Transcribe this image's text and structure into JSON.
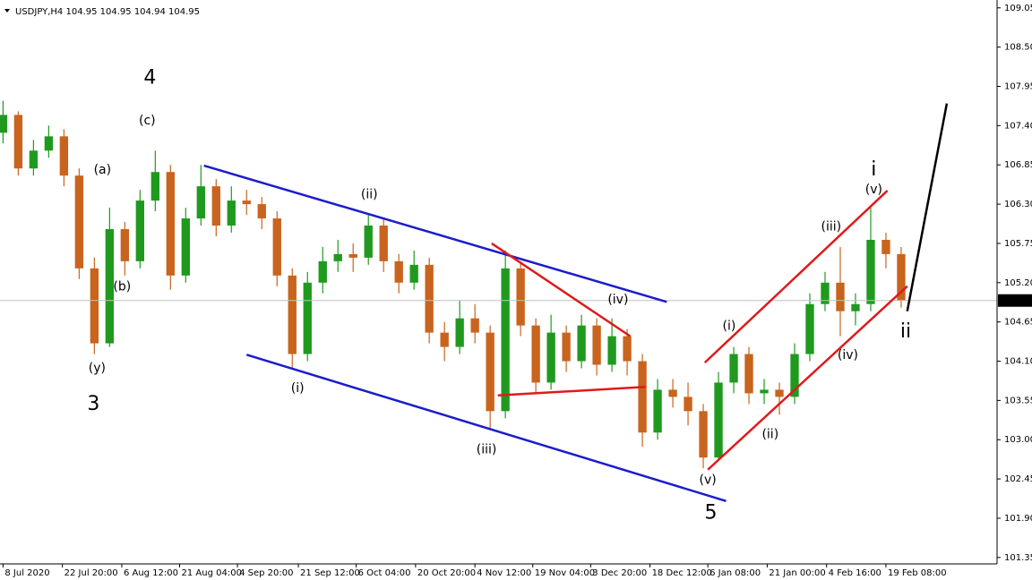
{
  "chart_data": {
    "type": "candlestick",
    "title": "USDJPY,H4  104.95 104.95 104.94 104.95",
    "open": [
      107.3,
      107.55,
      106.8,
      107.05,
      107.25,
      106.7,
      105.4,
      104.35,
      105.95,
      105.5,
      106.35,
      106.75,
      105.3,
      106.1,
      106.55,
      106.0,
      106.35,
      106.3,
      106.1,
      105.3,
      104.2,
      105.2,
      105.5,
      105.6,
      105.55,
      106.0,
      105.5,
      105.2,
      105.45,
      104.5,
      104.3,
      104.7,
      104.5,
      103.4,
      105.4,
      104.6,
      103.8,
      104.5,
      104.1,
      104.6,
      104.05,
      104.45,
      104.1,
      103.1,
      103.7,
      103.6,
      103.4,
      102.75,
      103.8,
      104.2,
      103.65,
      103.7,
      103.6,
      104.2,
      104.9,
      105.2,
      104.8,
      104.9,
      105.8,
      105.6
    ],
    "high": [
      107.75,
      107.6,
      107.2,
      107.4,
      107.35,
      106.8,
      105.55,
      106.25,
      106.05,
      106.5,
      107.05,
      106.85,
      106.25,
      106.85,
      106.65,
      106.55,
      106.5,
      106.4,
      106.2,
      105.4,
      105.35,
      105.7,
      105.8,
      105.75,
      106.15,
      106.1,
      105.6,
      105.65,
      105.55,
      104.65,
      104.95,
      104.9,
      104.6,
      105.65,
      105.5,
      104.7,
      104.75,
      104.6,
      104.75,
      104.7,
      104.7,
      104.55,
      104.2,
      103.85,
      103.85,
      103.8,
      103.5,
      103.95,
      104.3,
      104.3,
      103.85,
      103.8,
      104.35,
      105.05,
      105.35,
      105.7,
      105.05,
      106.25,
      105.9,
      105.7
    ],
    "low": [
      107.15,
      106.7,
      106.7,
      106.95,
      106.55,
      105.25,
      104.2,
      104.3,
      105.3,
      105.4,
      106.2,
      105.1,
      105.2,
      106.0,
      105.85,
      105.9,
      106.15,
      105.95,
      105.15,
      104.0,
      104.1,
      105.05,
      105.35,
      105.35,
      105.45,
      105.35,
      105.05,
      105.1,
      104.35,
      104.1,
      104.2,
      104.35,
      103.15,
      103.3,
      104.45,
      103.65,
      103.7,
      103.95,
      104.0,
      103.9,
      103.95,
      103.9,
      102.9,
      103.0,
      103.45,
      103.2,
      102.6,
      102.7,
      103.65,
      103.5,
      103.5,
      103.35,
      103.5,
      104.1,
      104.8,
      104.45,
      104.6,
      104.8,
      105.4,
      104.85
    ],
    "close": [
      107.55,
      106.8,
      107.05,
      107.25,
      106.7,
      105.4,
      104.35,
      105.95,
      105.5,
      106.35,
      106.75,
      105.3,
      106.1,
      106.55,
      106.0,
      106.35,
      106.3,
      106.1,
      105.3,
      104.2,
      105.2,
      105.5,
      105.6,
      105.55,
      106.0,
      105.5,
      105.2,
      105.45,
      104.5,
      104.3,
      104.7,
      104.5,
      103.4,
      105.4,
      104.6,
      103.8,
      104.5,
      104.1,
      104.6,
      104.05,
      104.45,
      104.1,
      103.1,
      103.7,
      103.6,
      103.4,
      102.75,
      103.8,
      104.2,
      103.65,
      103.7,
      103.6,
      104.2,
      104.9,
      105.2,
      104.8,
      104.9,
      105.8,
      105.6,
      104.95
    ],
    "up_color": "#1f9a1f",
    "down_color": "#c8641e",
    "xlim": [
      -0.2,
      65.3
    ],
    "xticks": [
      {
        "value": 0,
        "label": "8 Jul 2020"
      },
      {
        "value": 3.9,
        "label": "22 Jul 20:00"
      },
      {
        "value": 7.8,
        "label": "6 Aug 12:00"
      },
      {
        "value": 11.6,
        "label": "21 Aug 04:00"
      },
      {
        "value": 15.4,
        "label": "4 Sep 20:00"
      },
      {
        "value": 19.4,
        "label": "21 Sep 12:00"
      },
      {
        "value": 23.2,
        "label": "6 Oct 04:00"
      },
      {
        "value": 27.1,
        "label": "20 Oct 20:00"
      },
      {
        "value": 31,
        "label": "4 Nov 12:00"
      },
      {
        "value": 34.8,
        "label": "19 Nov 04:00"
      },
      {
        "value": 38.6,
        "label": "3 Dec 20:00"
      },
      {
        "value": 42.5,
        "label": "18 Dec 12:00"
      },
      {
        "value": 46.3,
        "label": "6 Jan 08:00"
      },
      {
        "value": 50.2,
        "label": "21 Jan 00:00"
      },
      {
        "value": 54.1,
        "label": "4 Feb 16:00"
      },
      {
        "value": 58,
        "label": "19 Feb 08:00"
      }
    ],
    "ylim": [
      101.26,
      109.16
    ],
    "yticks": [
      {
        "value": 101.35,
        "label": "101.35"
      },
      {
        "value": 101.9,
        "label": "101.90"
      },
      {
        "value": 102.45,
        "label": "102.45"
      },
      {
        "value": 103,
        "label": "103.00"
      },
      {
        "value": 103.55,
        "label": "103.55"
      },
      {
        "value": 104.1,
        "label": "104.10"
      },
      {
        "value": 104.65,
        "label": "104.65"
      },
      {
        "value": 105.2,
        "label": "105.20"
      },
      {
        "value": 105.75,
        "label": "105.75"
      },
      {
        "value": 106.3,
        "label": "106.30"
      },
      {
        "value": 106.85,
        "label": "106.85"
      },
      {
        "value": 107.4,
        "label": "107.40"
      },
      {
        "value": 107.95,
        "label": "107.95"
      },
      {
        "value": 108.5,
        "label": "108.50"
      },
      {
        "value": 109.05,
        "label": "109.05"
      }
    ],
    "annotations": [
      {
        "text": "4",
        "x": 9.65,
        "y": 108.06,
        "color": "#1e6e1e"
      },
      {
        "text": "3",
        "x": 5.94,
        "y": 103.49,
        "color": "#1e6e1e"
      },
      {
        "text": "(c)",
        "x": 9.47,
        "y": 107.47,
        "color": "#e03030"
      },
      {
        "text": "(a)",
        "x": 6.53,
        "y": 106.78,
        "color": "#e03030"
      },
      {
        "text": "(b)",
        "x": 7.82,
        "y": 105.14,
        "color": "#e03030"
      },
      {
        "text": "(y)",
        "x": 6.18,
        "y": 104.0,
        "color": "#e03030"
      },
      {
        "text": "(ii)",
        "x": 24.06,
        "y": 106.43,
        "color": "#e03030"
      },
      {
        "text": "(i)",
        "x": 19.35,
        "y": 103.72,
        "color": "#e03030"
      },
      {
        "text": "(iii)",
        "x": 31.76,
        "y": 102.86,
        "color": "#e03030"
      },
      {
        "text": "(iv)",
        "x": 40.4,
        "y": 104.96,
        "color": "#e03030"
      },
      {
        "text": "(v)",
        "x": 46.3,
        "y": 102.43,
        "color": "#e03030"
      },
      {
        "text": "5",
        "x": 46.5,
        "y": 101.97,
        "color": "#1e6e1e"
      },
      {
        "text": "(i)",
        "x": 47.7,
        "y": 104.59,
        "color": "#e03030"
      },
      {
        "text": "(ii)",
        "x": 50.4,
        "y": 103.07,
        "color": "#e03030"
      },
      {
        "text": "(iii)",
        "x": 54.4,
        "y": 105.98,
        "color": "#e03030"
      },
      {
        "text": "(iv)",
        "x": 55.5,
        "y": 104.18,
        "color": "#e03030"
      },
      {
        "text": "(v)",
        "x": 57.2,
        "y": 106.5,
        "color": "#e03030"
      },
      {
        "text": "i",
        "x": 57.2,
        "y": 106.78,
        "color": "#1e6e1e"
      },
      {
        "text": "ii",
        "x": 59.3,
        "y": 104.51,
        "color": "#1e6e1e"
      }
    ],
    "trendlines": [
      {
        "x": [
          13.2,
          43.6
        ],
        "y": [
          106.84,
          104.93
        ],
        "color": "#1c1ccc"
      },
      {
        "x": [
          16.0,
          47.5
        ],
        "y": [
          104.19,
          102.14
        ],
        "color": "#1c1ccc"
      },
      {
        "x": [
          32.1,
          41.2
        ],
        "y": [
          105.75,
          104.45
        ],
        "color": "#e01a1a"
      },
      {
        "x": [
          32.5,
          42.2
        ],
        "y": [
          103.62,
          103.74
        ],
        "color": "#e01a1a"
      },
      {
        "x": [
          46.1,
          58.1
        ],
        "y": [
          104.08,
          106.49
        ],
        "color": "#e01a1a"
      },
      {
        "x": [
          46.3,
          59.4
        ],
        "y": [
          102.58,
          105.15
        ],
        "color": "#e01a1a"
      },
      {
        "x": [
          59.4,
          62.0
        ],
        "y": [
          104.8,
          107.71
        ],
        "color": "#000000"
      }
    ]
  }
}
